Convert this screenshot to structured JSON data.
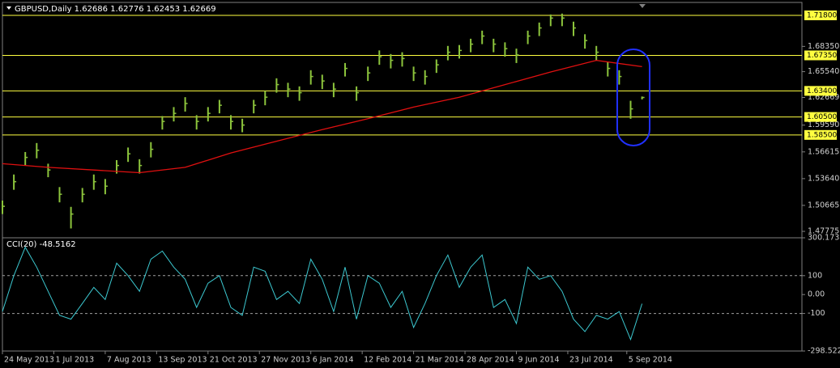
{
  "chart_data": [
    {
      "type": "ohlc",
      "title": "GBPUSD,Daily  1.62686 1.62776 1.62453 1.62669",
      "color": "#8cc43c",
      "x": [
        0,
        6,
        12,
        18,
        24,
        30,
        36,
        42,
        48,
        54,
        60,
        66,
        72,
        78,
        84,
        90,
        96,
        102,
        108,
        114,
        120,
        126,
        132,
        138,
        144,
        150,
        156,
        162,
        168,
        174,
        180,
        186,
        192,
        198,
        204,
        210,
        216,
        222,
        228,
        234,
        240,
        246,
        252,
        258,
        264,
        270,
        276,
        282,
        288,
        294,
        300,
        306,
        312,
        318,
        324,
        330,
        336
      ],
      "close": [
        1.5056,
        1.533,
        1.56,
        1.568,
        1.546,
        1.519,
        1.497,
        1.519,
        1.533,
        1.528,
        1.551,
        1.564,
        1.551,
        1.569,
        1.6,
        1.609,
        1.62,
        1.6,
        1.609,
        1.618,
        1.6,
        1.596,
        1.618,
        1.627,
        1.641,
        1.636,
        1.632,
        1.65,
        1.645,
        1.636,
        1.659,
        1.632,
        1.654,
        1.672,
        1.668,
        1.67,
        1.654,
        1.65,
        1.663,
        1.677,
        1.679,
        1.686,
        1.695,
        1.686,
        1.681,
        1.674,
        1.695,
        1.704,
        1.715,
        1.715,
        1.704,
        1.69,
        1.677,
        1.659,
        1.65,
        1.614,
        1.62669
      ],
      "high": [
        1.512,
        1.541,
        1.566,
        1.576,
        1.553,
        1.527,
        1.505,
        1.526,
        1.541,
        1.536,
        1.557,
        1.571,
        1.558,
        1.577,
        1.606,
        1.616,
        1.627,
        1.607,
        1.616,
        1.624,
        1.607,
        1.603,
        1.624,
        1.634,
        1.648,
        1.643,
        1.639,
        1.657,
        1.652,
        1.643,
        1.665,
        1.639,
        1.661,
        1.679,
        1.675,
        1.677,
        1.661,
        1.657,
        1.669,
        1.684,
        1.685,
        1.692,
        1.701,
        1.692,
        1.688,
        1.681,
        1.701,
        1.71,
        1.719,
        1.72,
        1.711,
        1.697,
        1.684,
        1.666,
        1.657,
        1.623,
        1.62776
      ],
      "low": [
        1.497,
        1.524,
        1.551,
        1.559,
        1.538,
        1.51,
        1.481,
        1.51,
        1.524,
        1.519,
        1.542,
        1.555,
        1.542,
        1.56,
        1.591,
        1.6,
        1.611,
        1.591,
        1.6,
        1.609,
        1.591,
        1.588,
        1.609,
        1.618,
        1.632,
        1.627,
        1.623,
        1.641,
        1.636,
        1.627,
        1.65,
        1.623,
        1.645,
        1.663,
        1.659,
        1.661,
        1.645,
        1.641,
        1.654,
        1.668,
        1.67,
        1.677,
        1.686,
        1.677,
        1.672,
        1.665,
        1.686,
        1.695,
        1.706,
        1.706,
        1.695,
        1.681,
        1.668,
        1.65,
        1.641,
        1.603,
        1.62453
      ],
      "ma": {
        "color": "#e01010",
        "x": [
          0,
          24,
          48,
          72,
          96,
          120,
          144,
          168,
          192,
          216,
          240,
          264,
          288,
          312,
          336
        ],
        "values": [
          1.553,
          1.549,
          1.546,
          1.543,
          1.549,
          1.565,
          1.578,
          1.591,
          1.603,
          1.616,
          1.627,
          1.641,
          1.655,
          1.668,
          1.661
        ]
      },
      "levels": [
        {
          "value": 1.718,
          "label": "1.71800"
        },
        {
          "value": 1.6735,
          "label": "1.67350"
        },
        {
          "value": 1.634,
          "label": "1.63400"
        },
        {
          "value": 1.605,
          "label": "1.60500"
        },
        {
          "value": 1.585,
          "label": "1.58500"
        }
      ],
      "level_color": "#ffff40",
      "xlim": [
        0,
        420
      ],
      "ylim": [
        1.4715,
        1.7324
      ],
      "yticks": [
        {
          "value": 1.6835,
          "label": "1.68350"
        },
        {
          "value": 1.6554,
          "label": "1.65540"
        },
        {
          "value": 1.62669,
          "label": "1.62669"
        },
        {
          "value": 1.5959,
          "label": "1.59590"
        },
        {
          "value": 1.56615,
          "label": "1.56615"
        },
        {
          "value": 1.5364,
          "label": "1.53640"
        },
        {
          "value": 1.50665,
          "label": "1.50665"
        },
        {
          "value": 1.47775,
          "label": "1.47775"
        }
      ]
    },
    {
      "type": "line",
      "title": "CCI(20) -48.5162",
      "color": "#3cc8d0",
      "x": [
        0,
        6,
        12,
        18,
        24,
        30,
        36,
        42,
        48,
        54,
        60,
        66,
        72,
        78,
        84,
        90,
        96,
        102,
        108,
        114,
        120,
        126,
        132,
        138,
        144,
        150,
        156,
        162,
        168,
        174,
        180,
        186,
        192,
        198,
        204,
        210,
        216,
        222,
        228,
        234,
        240,
        246,
        252,
        258,
        264,
        270,
        276,
        282,
        288,
        294,
        300,
        306,
        312,
        318,
        324,
        330,
        336
      ],
      "values": [
        -90,
        100,
        250,
        145,
        17,
        -110,
        -130,
        -47,
        38,
        -26,
        166,
        100,
        17,
        187,
        230,
        145,
        81,
        -68,
        60,
        100,
        -68,
        -110,
        145,
        123,
        -26,
        17,
        -47,
        187,
        81,
        -90,
        145,
        -130,
        100,
        60,
        -68,
        17,
        -174,
        -47,
        100,
        209,
        38,
        145,
        209,
        -68,
        -26,
        -153,
        145,
        81,
        100,
        17,
        -130,
        -196,
        -110,
        -130,
        -90,
        -238,
        -48.5162
      ],
      "levels": [
        100,
        -100
      ],
      "xlim": [
        0,
        420
      ],
      "ylim": [
        -298.5228,
        300.1738
      ],
      "yticks": [
        300.1738,
        100,
        {
          "value": 0,
          "label": "0.00"
        },
        -100,
        -298.5228
      ],
      "xticks": [
        {
          "value": 0,
          "label": "24 May 2013"
        },
        {
          "value": 27,
          "label": "1 Jul 2013"
        },
        {
          "value": 54,
          "label": "7 Aug 2013"
        },
        {
          "value": 81,
          "label": "13 Sep 2013"
        },
        {
          "value": 108,
          "label": "21 Oct 2013"
        },
        {
          "value": 135,
          "label": "27 Nov 2013"
        },
        {
          "value": 162,
          "label": "6 Jan 2014"
        },
        {
          "value": 189,
          "label": "12 Feb 2014"
        },
        {
          "value": 216,
          "label": "21 Mar 2014"
        },
        {
          "value": 243,
          "label": "28 Apr 2014"
        },
        {
          "value": 270,
          "label": "9 Jun 2014"
        },
        {
          "value": 297,
          "label": "23 Jul 2014"
        },
        {
          "value": 328,
          "label": "5 Sep 2014"
        }
      ]
    }
  ]
}
